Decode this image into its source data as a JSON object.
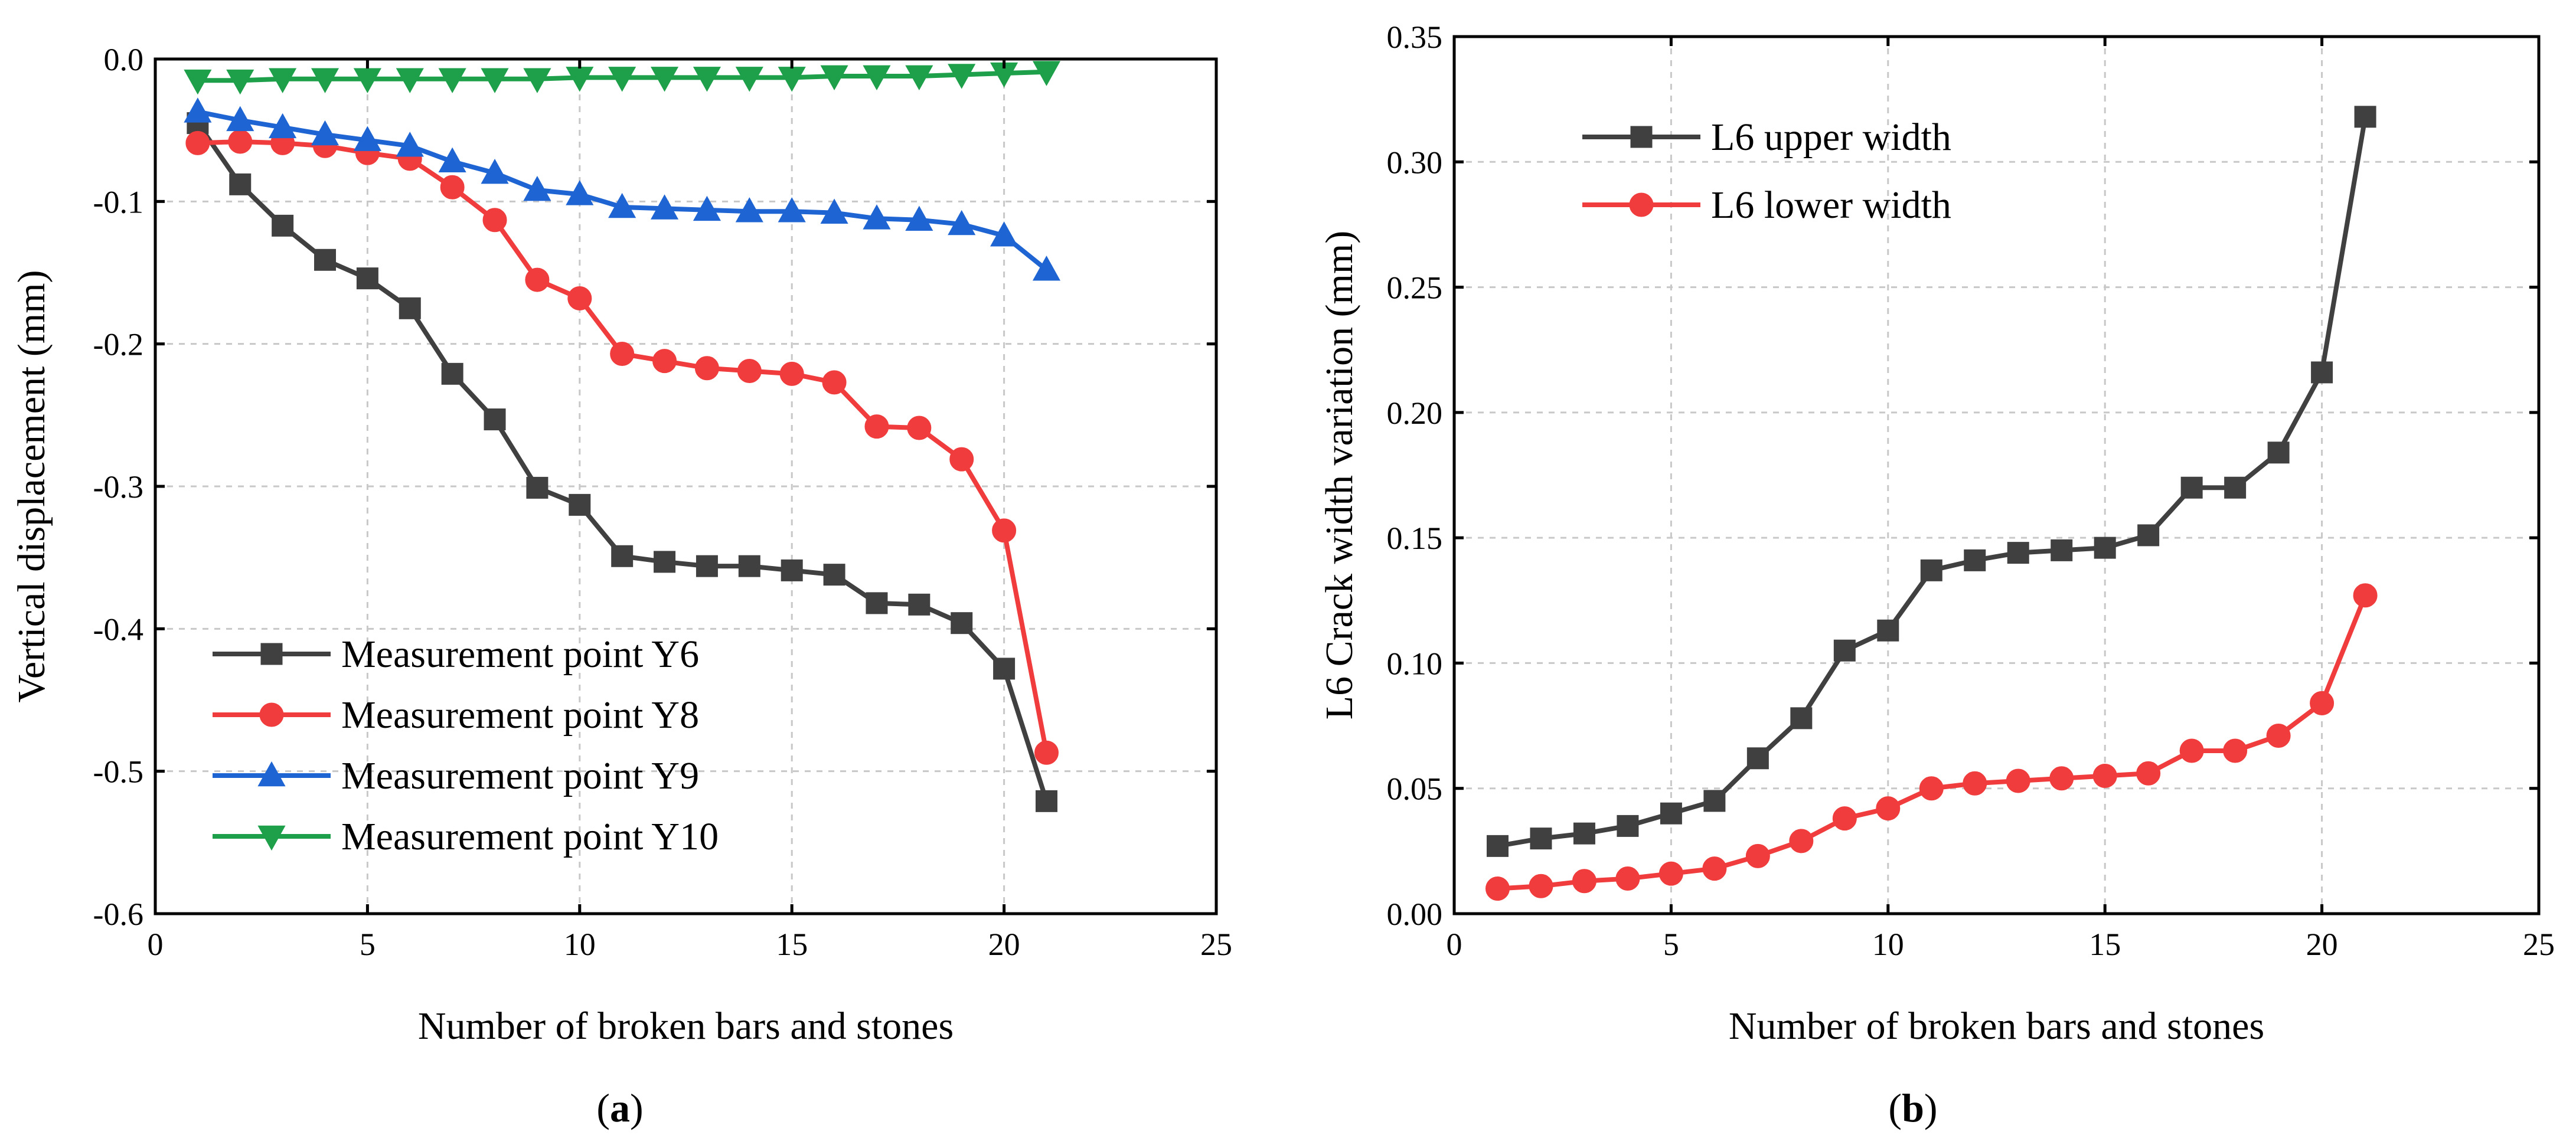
{
  "chart_data": [
    {
      "type": "line",
      "panel_label": "a",
      "xlabel": "Number of broken bars and stones",
      "ylabel": "Vertical displacement (mm)",
      "xlim": [
        0,
        25
      ],
      "ylim": [
        -0.6,
        0.0
      ],
      "xticks": [
        0,
        5,
        10,
        15,
        20,
        25
      ],
      "yticks": [
        -0.6,
        -0.5,
        -0.4,
        -0.3,
        -0.2,
        -0.1,
        0.0
      ],
      "xtick_labels": [
        "0",
        "5",
        "10",
        "15",
        "20",
        "25"
      ],
      "ytick_labels": [
        "-0.6",
        "-0.5",
        "-0.4",
        "-0.3",
        "-0.2",
        "-0.1",
        "0.0"
      ],
      "grid": true,
      "legend_position": "bottom-left",
      "x": [
        1,
        2,
        3,
        4,
        5,
        6,
        7,
        8,
        9,
        10,
        11,
        12,
        13,
        14,
        15,
        16,
        17,
        18,
        19,
        20,
        21
      ],
      "series": [
        {
          "name": "Measurement point Y6",
          "color": "#404040",
          "marker": "square",
          "values": [
            -0.045,
            -0.088,
            -0.117,
            -0.141,
            -0.154,
            -0.175,
            -0.221,
            -0.253,
            -0.301,
            -0.313,
            -0.349,
            -0.353,
            -0.356,
            -0.356,
            -0.359,
            -0.362,
            -0.382,
            -0.383,
            -0.396,
            -0.428,
            -0.521
          ]
        },
        {
          "name": "Measurement point Y8",
          "color": "#f03c3c",
          "marker": "circle",
          "values": [
            -0.059,
            -0.058,
            -0.059,
            -0.061,
            -0.066,
            -0.07,
            -0.09,
            -0.113,
            -0.155,
            -0.168,
            -0.207,
            -0.212,
            -0.217,
            -0.219,
            -0.221,
            -0.227,
            -0.258,
            -0.259,
            -0.281,
            -0.331,
            -0.487
          ]
        },
        {
          "name": "Measurement point Y9",
          "color": "#1e64d2",
          "marker": "triangle-up",
          "values": [
            -0.037,
            -0.043,
            -0.048,
            -0.053,
            -0.057,
            -0.061,
            -0.072,
            -0.08,
            -0.092,
            -0.095,
            -0.104,
            -0.105,
            -0.106,
            -0.107,
            -0.107,
            -0.108,
            -0.112,
            -0.113,
            -0.116,
            -0.124,
            -0.148
          ]
        },
        {
          "name": "Measurement point Y10",
          "color": "#1ea04b",
          "marker": "triangle-down",
          "values": [
            -0.015,
            -0.015,
            -0.014,
            -0.014,
            -0.014,
            -0.014,
            -0.014,
            -0.014,
            -0.014,
            -0.013,
            -0.013,
            -0.013,
            -0.013,
            -0.013,
            -0.013,
            -0.012,
            -0.012,
            -0.012,
            -0.011,
            -0.01,
            -0.009
          ]
        }
      ]
    },
    {
      "type": "line",
      "panel_label": "b",
      "xlabel": "Number of broken bars and stones",
      "ylabel": "L6 Crack width variation (mm)",
      "xlim": [
        0,
        25
      ],
      "ylim": [
        0.0,
        0.35
      ],
      "xticks": [
        0,
        5,
        10,
        15,
        20,
        25
      ],
      "yticks": [
        0.0,
        0.05,
        0.1,
        0.15,
        0.2,
        0.25,
        0.3,
        0.35
      ],
      "xtick_labels": [
        "0",
        "5",
        "10",
        "15",
        "20",
        "25"
      ],
      "ytick_labels": [
        "0.00",
        "0.05",
        "0.10",
        "0.15",
        "0.20",
        "0.25",
        "0.30",
        "0.35"
      ],
      "grid": true,
      "legend_position": "top-left",
      "x": [
        1,
        2,
        3,
        4,
        5,
        6,
        7,
        8,
        9,
        10,
        11,
        12,
        13,
        14,
        15,
        16,
        17,
        18,
        19,
        20,
        21
      ],
      "series": [
        {
          "name": "L6 upper width",
          "color": "#404040",
          "marker": "square",
          "values": [
            0.027,
            0.03,
            0.032,
            0.035,
            0.04,
            0.045,
            0.062,
            0.078,
            0.105,
            0.113,
            0.137,
            0.141,
            0.144,
            0.145,
            0.146,
            0.151,
            0.17,
            0.17,
            0.184,
            0.216,
            0.318
          ]
        },
        {
          "name": "L6 lower width",
          "color": "#f03c3c",
          "marker": "circle",
          "values": [
            0.01,
            0.011,
            0.013,
            0.014,
            0.016,
            0.018,
            0.023,
            0.029,
            0.038,
            0.042,
            0.05,
            0.052,
            0.053,
            0.054,
            0.055,
            0.056,
            0.065,
            0.065,
            0.071,
            0.084,
            0.127
          ]
        }
      ]
    }
  ]
}
